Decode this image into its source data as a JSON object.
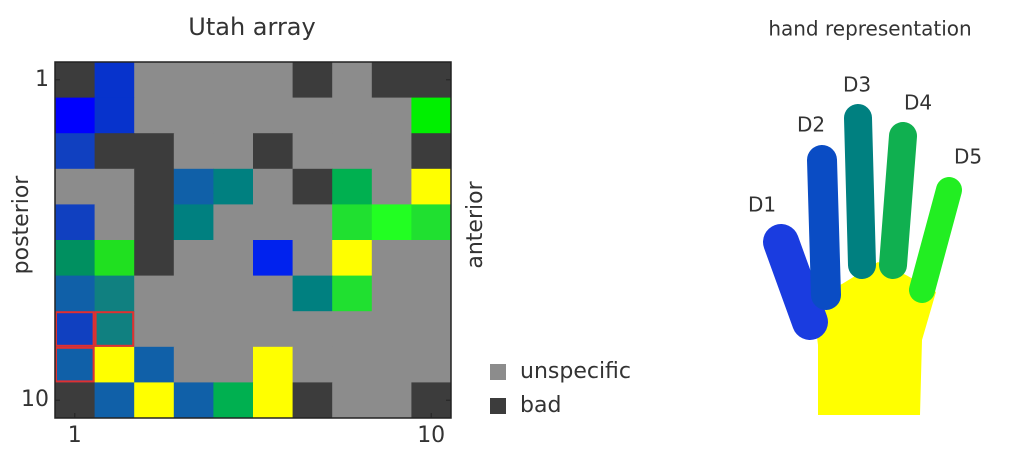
{
  "chart_data": {
    "type": "heatmap",
    "title": "Utah array",
    "y_label": "posterior",
    "y2_label": "anterior",
    "xlim": [
      0.5,
      10.5
    ],
    "ylim": [
      0.5,
      10.5
    ],
    "y_inverted": true,
    "xticks": [
      1,
      10
    ],
    "yticks": [
      1,
      10
    ],
    "cells": [
      [
        "#3c3c3c",
        "#0733cc",
        "#8c8c8c",
        "#8c8c8c",
        "#8c8c8c",
        "#8c8c8c",
        "#3c3c3c",
        "#8c8c8c",
        "#3c3c3c",
        "#3c3c3c"
      ],
      [
        "#0000ff",
        "#0733cc",
        "#8c8c8c",
        "#8c8c8c",
        "#8c8c8c",
        "#8c8c8c",
        "#8c8c8c",
        "#8c8c8c",
        "#8c8c8c",
        "#00f000"
      ],
      [
        "#1040c0",
        "#3c3c3c",
        "#3c3c3c",
        "#8c8c8c",
        "#8c8c8c",
        "#3c3c3c",
        "#8c8c8c",
        "#8c8c8c",
        "#8c8c8c",
        "#3c3c3c"
      ],
      [
        "#8c8c8c",
        "#8c8c8c",
        "#3c3c3c",
        "#1060a8",
        "#008080",
        "#8c8c8c",
        "#3c3c3c",
        "#00b050",
        "#8c8c8c",
        "#ffff00"
      ],
      [
        "#1040c0",
        "#8c8c8c",
        "#3c3c3c",
        "#008080",
        "#8c8c8c",
        "#8c8c8c",
        "#8c8c8c",
        "#20e030",
        "#22ff22",
        "#20e030"
      ],
      [
        "#009060",
        "#20e020",
        "#3c3c3c",
        "#8c8c8c",
        "#8c8c8c",
        "#0022ee",
        "#8c8c8c",
        "#ffff00",
        "#8c8c8c",
        "#8c8c8c"
      ],
      [
        "#1060a8",
        "#108080",
        "#8c8c8c",
        "#8c8c8c",
        "#8c8c8c",
        "#8c8c8c",
        "#008080",
        "#20e030",
        "#8c8c8c",
        "#8c8c8c"
      ],
      [
        "#1040c0",
        "#108080",
        "#8c8c8c",
        "#8c8c8c",
        "#8c8c8c",
        "#8c8c8c",
        "#8c8c8c",
        "#8c8c8c",
        "#8c8c8c",
        "#8c8c8c"
      ],
      [
        "#1060a8",
        "#ffff00",
        "#1060a8",
        "#8c8c8c",
        "#8c8c8c",
        "#ffff00",
        "#8c8c8c",
        "#8c8c8c",
        "#8c8c8c",
        "#8c8c8c"
      ],
      [
        "#3c3c3c",
        "#1060a8",
        "#ffff00",
        "#1060a8",
        "#00b050",
        "#ffff00",
        "#3c3c3c",
        "#8c8c8c",
        "#8c8c8c",
        "#3c3c3c"
      ]
    ],
    "legend": [
      {
        "name": "unspecific",
        "color": "#8c8c8c"
      },
      {
        "name": "bad",
        "color": "#3c3c3c"
      }
    ]
  },
  "hand": {
    "title": "hand representation",
    "palm_color": "#ffff00",
    "digits": [
      {
        "label": "D1",
        "color": "#1a3ce0"
      },
      {
        "label": "D2",
        "color": "#0a4cc4"
      },
      {
        "label": "D3",
        "color": "#008080"
      },
      {
        "label": "D4",
        "color": "#10b050"
      },
      {
        "label": "D5",
        "color": "#22ee22"
      }
    ]
  }
}
